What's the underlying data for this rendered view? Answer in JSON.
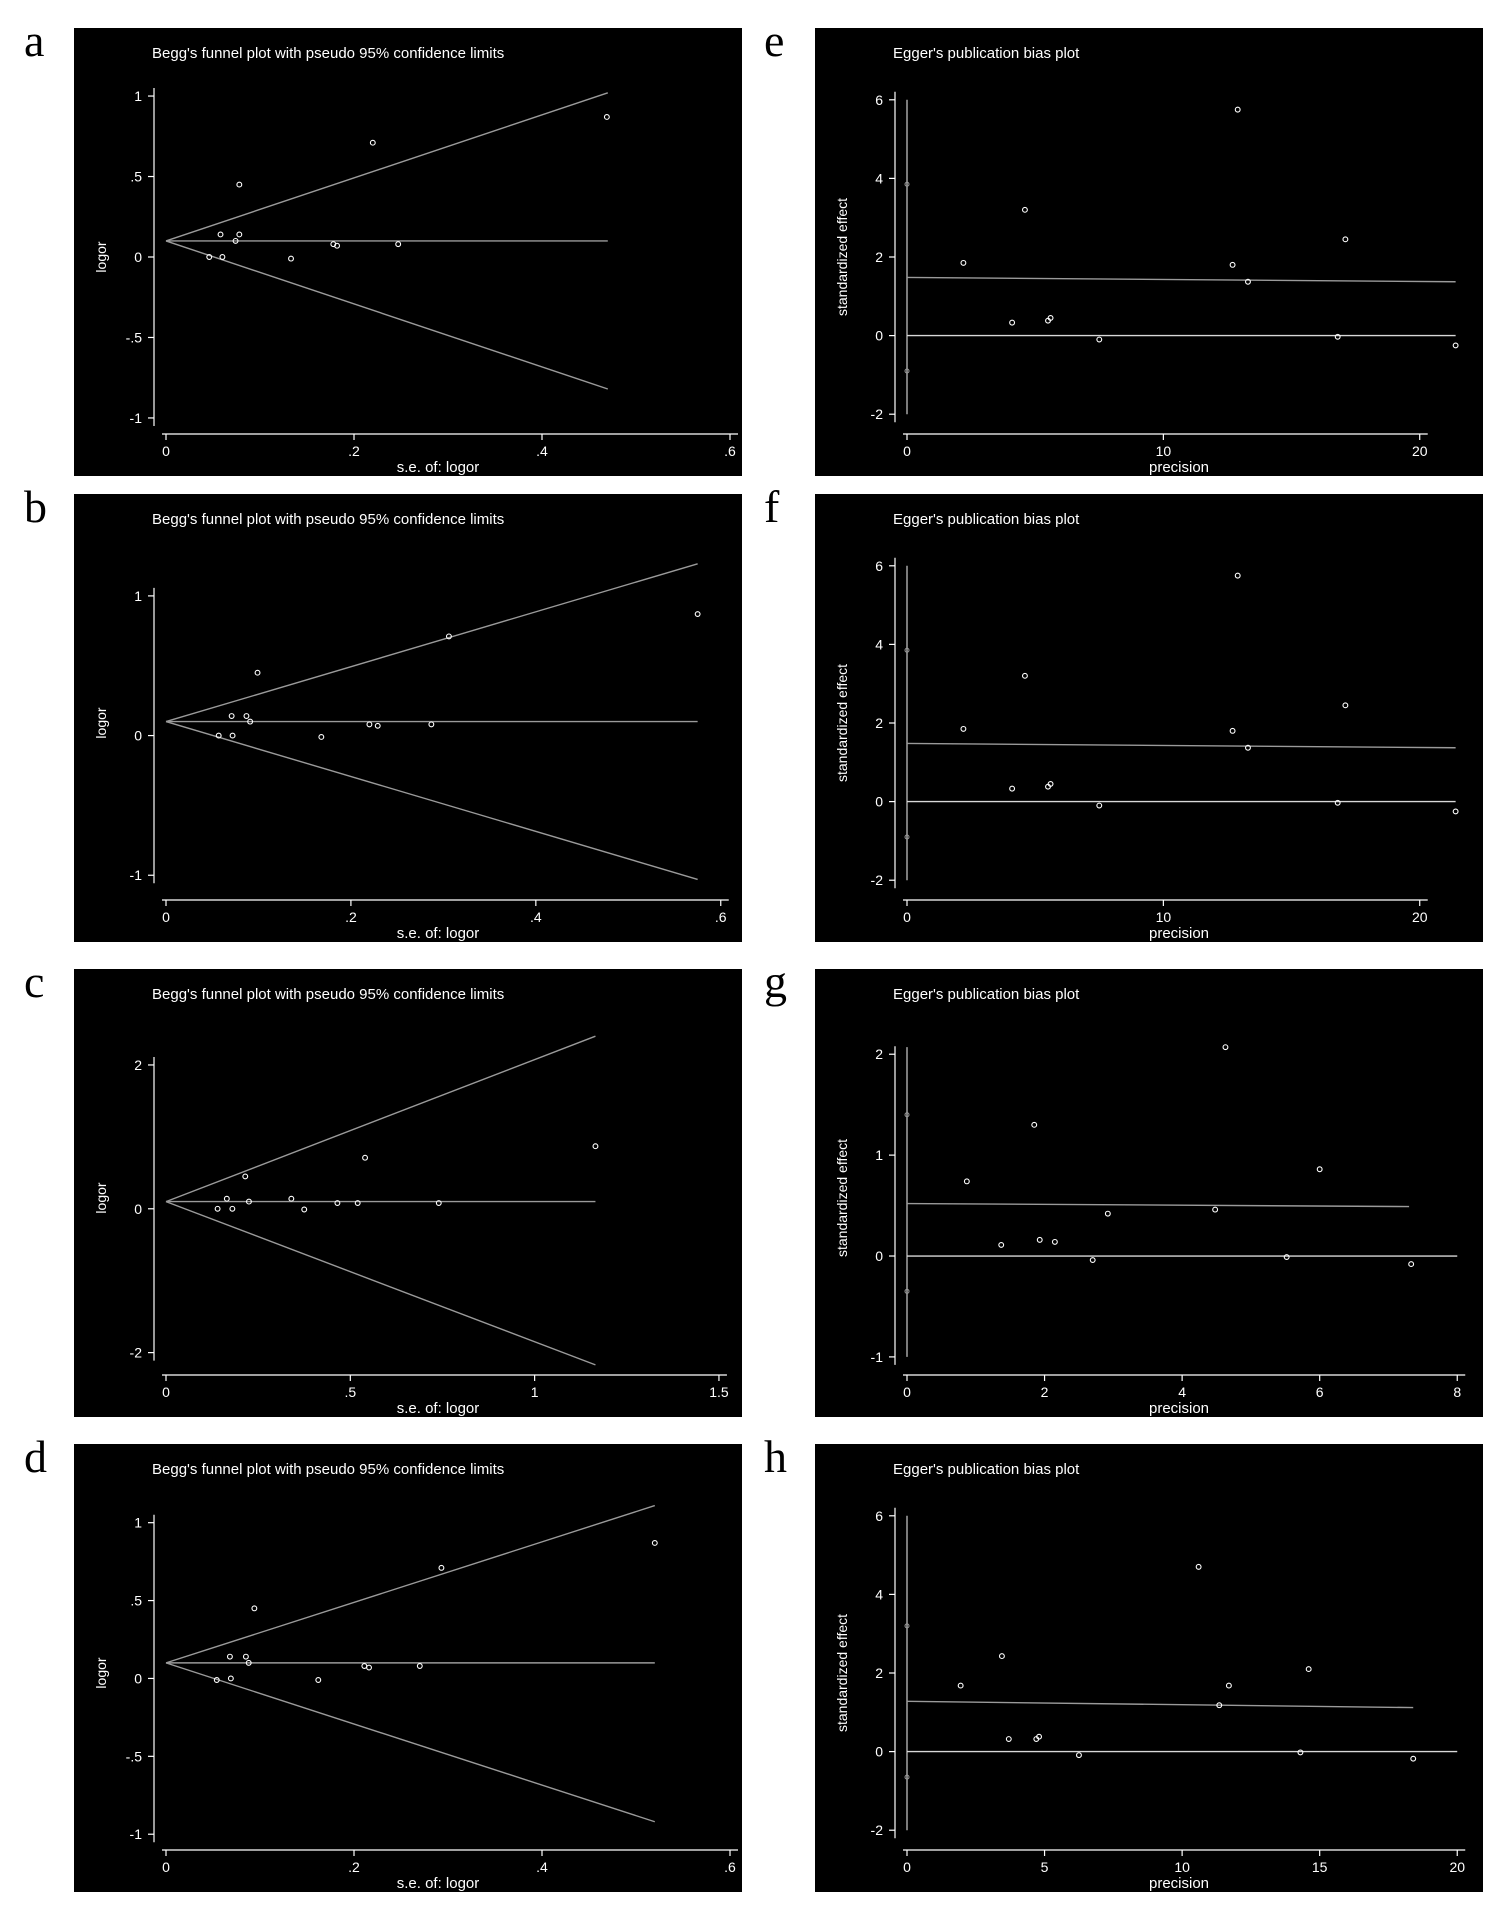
{
  "figure": {
    "background": "#ffffff",
    "panel_background": "#000000",
    "ink_color": "#ffffff",
    "line_color": "#9a9a9a"
  },
  "chart_data": [
    {
      "letter": "a",
      "type": "scatter",
      "title": "Begg's funnel plot with pseudo 95% confidence limits",
      "xlabel": "s.e. of: logor",
      "ylabel": "logor",
      "xlim": [
        0,
        0.6
      ],
      "ylim": [
        -1.05,
        1.05
      ],
      "xticks": [
        0,
        0.2,
        0.4,
        0.6
      ],
      "xtick_labels": [
        "0",
        ".2",
        ".4",
        ".6"
      ],
      "yticks": [
        1,
        0.5,
        0,
        -0.5,
        -1
      ],
      "ytick_labels": [
        "1",
        ".5",
        "0",
        "-.5",
        "-1"
      ],
      "lines": [
        {
          "name": "upper limit",
          "x": [
            0,
            0.47
          ],
          "y": [
            0.1,
            1.02
          ]
        },
        {
          "name": "lower limit",
          "x": [
            0,
            0.47
          ],
          "y": [
            0.1,
            -0.82
          ]
        },
        {
          "name": "pooled estimate",
          "x": [
            0,
            0.47
          ],
          "y": [
            0.1,
            0.1
          ]
        }
      ],
      "points": {
        "x": [
          0.046,
          0.058,
          0.06,
          0.074,
          0.078,
          0.078,
          0.133,
          0.178,
          0.182,
          0.22,
          0.247,
          0.469
        ],
        "y": [
          0.0,
          0.14,
          0.0,
          0.1,
          0.14,
          0.45,
          -0.01,
          0.08,
          0.07,
          0.71,
          0.08,
          0.87
        ]
      }
    },
    {
      "letter": "e",
      "type": "scatter",
      "title": "Egger's publication bias plot",
      "xlabel": "precision",
      "ylabel": "standardized effect",
      "xlim": [
        0,
        22
      ],
      "ylim": [
        -2.3,
        6.3
      ],
      "xticks": [
        0,
        10,
        20
      ],
      "xtick_labels": [
        "0",
        "10",
        "20"
      ],
      "yticks": [
        6,
        4,
        2,
        0,
        -2
      ],
      "ytick_labels": [
        "6",
        "4",
        "2",
        "0",
        "-2"
      ],
      "intercept_ci": {
        "x": 0,
        "low": -2,
        "high": 6,
        "estimate": 1.45
      },
      "intercept_markers": [
        3.85,
        -0.9
      ],
      "lines": [
        {
          "name": "regression",
          "x": [
            0,
            21.4
          ],
          "y": [
            1.48,
            1.37
          ]
        },
        {
          "name": "zero",
          "x": [
            0,
            21.4
          ],
          "y": [
            0,
            0
          ]
        }
      ],
      "points": {
        "x": [
          2.2,
          4.1,
          4.6,
          5.5,
          5.6,
          7.5,
          12.7,
          12.9,
          13.3,
          16.8,
          17.1,
          21.4
        ],
        "y": [
          1.85,
          0.33,
          3.2,
          0.38,
          0.45,
          -0.1,
          1.8,
          5.75,
          1.37,
          -0.03,
          2.45,
          -0.25
        ]
      }
    },
    {
      "letter": "b",
      "type": "scatter",
      "title": "Begg's funnel plot with pseudo 95% confidence limits",
      "xlabel": "s.e. of: logor",
      "ylabel": "logor",
      "xlim": [
        0,
        0.61
      ],
      "ylim": [
        -1.12,
        1.3
      ],
      "xticks": [
        0,
        0.2,
        0.4,
        0.6
      ],
      "xtick_labels": [
        "0",
        ".2",
        ".4",
        ".6"
      ],
      "yticks": [
        1,
        0,
        -1
      ],
      "ytick_labels": [
        "1",
        "0",
        "-1"
      ],
      "lines": [
        {
          "name": "upper limit",
          "x": [
            0,
            0.575
          ],
          "y": [
            0.1,
            1.23
          ]
        },
        {
          "name": "lower limit",
          "x": [
            0,
            0.575
          ],
          "y": [
            0.1,
            -1.03
          ]
        },
        {
          "name": "pooled estimate",
          "x": [
            0,
            0.575
          ],
          "y": [
            0.1,
            0.1
          ]
        }
      ],
      "points": {
        "x": [
          0.057,
          0.071,
          0.072,
          0.087,
          0.091,
          0.099,
          0.168,
          0.22,
          0.229,
          0.287,
          0.306,
          0.575
        ],
        "y": [
          0.0,
          0.14,
          0.0,
          0.14,
          0.1,
          0.45,
          -0.01,
          0.08,
          0.07,
          0.08,
          0.71,
          0.87
        ]
      }
    },
    {
      "letter": "f",
      "type": "scatter",
      "title": "Egger's publication bias plot",
      "xlabel": "precision",
      "ylabel": "standardized effect",
      "xlim": [
        0,
        22
      ],
      "ylim": [
        -2.3,
        6.3
      ],
      "xticks": [
        0,
        10,
        20
      ],
      "xtick_labels": [
        "0",
        "10",
        "20"
      ],
      "yticks": [
        6,
        4,
        2,
        0,
        -2
      ],
      "ytick_labels": [
        "6",
        "4",
        "2",
        "0",
        "-2"
      ],
      "intercept_ci": {
        "x": 0,
        "low": -2,
        "high": 6,
        "estimate": 1.45
      },
      "intercept_markers": [
        3.85,
        -0.9
      ],
      "lines": [
        {
          "name": "regression",
          "x": [
            0,
            21.4
          ],
          "y": [
            1.48,
            1.37
          ]
        },
        {
          "name": "zero",
          "x": [
            0,
            21.4
          ],
          "y": [
            0,
            0
          ]
        }
      ],
      "points": {
        "x": [
          2.2,
          4.1,
          4.6,
          5.5,
          5.6,
          7.5,
          12.7,
          12.9,
          13.3,
          16.8,
          17.1,
          21.4
        ],
        "y": [
          1.85,
          0.33,
          3.2,
          0.38,
          0.45,
          -0.1,
          1.8,
          5.75,
          1.37,
          -0.03,
          2.45,
          -0.25
        ]
      }
    },
    {
      "letter": "c",
      "type": "scatter",
      "title": "Begg's funnel plot with pseudo 95% confidence limits",
      "xlabel": "s.e. of: logor",
      "ylabel": "logor",
      "xlim": [
        0,
        1.53
      ],
      "ylim": [
        -2.2,
        2.5
      ],
      "xticks": [
        0,
        0.5,
        1,
        1.5
      ],
      "xtick_labels": [
        "0",
        ".5",
        "1",
        "1.5"
      ],
      "yticks": [
        2,
        0,
        -2
      ],
      "ytick_labels": [
        "2",
        "0",
        "-2"
      ],
      "lines": [
        {
          "name": "upper limit",
          "x": [
            0,
            1.165
          ],
          "y": [
            0.1,
            2.4
          ]
        },
        {
          "name": "lower limit",
          "x": [
            0,
            1.165
          ],
          "y": [
            0.1,
            -2.17
          ]
        },
        {
          "name": "pooled estimate",
          "x": [
            0,
            1.165
          ],
          "y": [
            0.1,
            0.1
          ]
        }
      ],
      "points": {
        "x": [
          0.14,
          0.165,
          0.18,
          0.215,
          0.225,
          0.34,
          0.375,
          0.465,
          0.52,
          0.54,
          0.74,
          1.165
        ],
        "y": [
          0.0,
          0.14,
          0.0,
          0.45,
          0.1,
          0.14,
          -0.01,
          0.08,
          0.08,
          0.71,
          0.08,
          0.87
        ]
      }
    },
    {
      "letter": "g",
      "type": "scatter",
      "title": "Egger's publication bias plot",
      "xlabel": "precision",
      "ylabel": "standardized effect",
      "xlim": [
        0,
        8.2
      ],
      "ylim": [
        -1.1,
        2.25
      ],
      "xticks": [
        0,
        2,
        4,
        6,
        8
      ],
      "xtick_labels": [
        "0",
        "2",
        "4",
        "6",
        "8"
      ],
      "yticks": [
        2,
        1,
        0,
        -1
      ],
      "ytick_labels": [
        "2",
        "1",
        "0",
        "-1"
      ],
      "intercept_ci": {
        "x": 0,
        "low": -1,
        "high": 2.07,
        "estimate": 0.52
      },
      "intercept_markers": [
        1.4,
        -0.35
      ],
      "lines": [
        {
          "name": "regression",
          "x": [
            0,
            7.3
          ],
          "y": [
            0.52,
            0.49
          ]
        },
        {
          "name": "zero",
          "x": [
            0,
            8.0
          ],
          "y": [
            0,
            0
          ]
        }
      ],
      "points": {
        "x": [
          0.87,
          1.37,
          1.85,
          1.93,
          2.15,
          2.7,
          2.92,
          4.48,
          4.63,
          5.52,
          6.0,
          7.33
        ],
        "y": [
          0.74,
          0.11,
          1.3,
          0.16,
          0.14,
          -0.04,
          0.42,
          0.46,
          2.07,
          -0.01,
          0.86,
          -0.08
        ]
      }
    },
    {
      "letter": "d",
      "type": "scatter",
      "title": "Begg's funnel plot with pseudo 95% confidence limits",
      "xlabel": "s.e. of: logor",
      "ylabel": "logor",
      "xlim": [
        0,
        0.6
      ],
      "ylim": [
        -1.05,
        1.12
      ],
      "xticks": [
        0,
        0.2,
        0.4,
        0.6
      ],
      "xtick_labels": [
        "0",
        ".2",
        ".4",
        ".6"
      ],
      "yticks": [
        1,
        0.5,
        0,
        -0.5,
        -1
      ],
      "ytick_labels": [
        "1",
        ".5",
        "0",
        "-.5",
        "-1"
      ],
      "lines": [
        {
          "name": "upper limit",
          "x": [
            0,
            0.52
          ],
          "y": [
            0.1,
            1.11
          ]
        },
        {
          "name": "lower limit",
          "x": [
            0,
            0.52
          ],
          "y": [
            0.1,
            -0.92
          ]
        },
        {
          "name": "pooled estimate",
          "x": [
            0,
            0.52
          ],
          "y": [
            0.1,
            0.1
          ]
        }
      ],
      "points": {
        "x": [
          0.054,
          0.068,
          0.069,
          0.085,
          0.088,
          0.094,
          0.162,
          0.211,
          0.216,
          0.27,
          0.293,
          0.52
        ],
        "y": [
          -0.01,
          0.14,
          0.0,
          0.14,
          0.1,
          0.45,
          -0.01,
          0.08,
          0.07,
          0.08,
          0.71,
          0.87
        ]
      }
    },
    {
      "letter": "h",
      "type": "scatter",
      "title": "Egger's publication bias plot",
      "xlabel": "precision",
      "ylabel": "standardized effect",
      "xlim": [
        0,
        20.5
      ],
      "ylim": [
        -2.3,
        6.3
      ],
      "xticks": [
        0,
        5,
        10,
        15,
        20
      ],
      "xtick_labels": [
        "0",
        "5",
        "10",
        "15",
        "20"
      ],
      "yticks": [
        6,
        4,
        2,
        0,
        -2
      ],
      "ytick_labels": [
        "6",
        "4",
        "2",
        "0",
        "-2"
      ],
      "intercept_ci": {
        "x": 0,
        "low": -2,
        "high": 6,
        "estimate": 1.28
      },
      "intercept_markers": [
        3.2,
        -0.65
      ],
      "lines": [
        {
          "name": "regression",
          "x": [
            0,
            18.4
          ],
          "y": [
            1.28,
            1.12
          ]
        },
        {
          "name": "zero",
          "x": [
            0,
            20
          ],
          "y": [
            0,
            0
          ]
        }
      ],
      "points": {
        "x": [
          1.95,
          3.45,
          3.7,
          4.7,
          4.8,
          6.25,
          10.6,
          11.35,
          11.7,
          14.3,
          14.6,
          18.4
        ],
        "y": [
          1.68,
          2.43,
          0.32,
          0.32,
          0.38,
          -0.09,
          4.7,
          1.18,
          1.68,
          -0.02,
          2.1,
          -0.18
        ]
      }
    }
  ]
}
